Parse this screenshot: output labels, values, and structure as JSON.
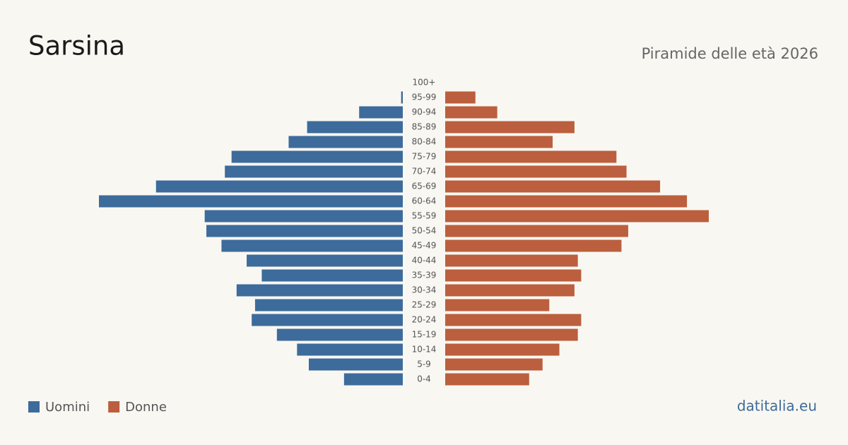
{
  "chart_data": {
    "type": "pyramid",
    "title": "Sarsina",
    "subtitle": "Piramide delle età 2026",
    "source": "datitalia.eu",
    "categories": [
      "0-4",
      "5-9",
      "10-14",
      "15-19",
      "20-24",
      "25-29",
      "30-34",
      "35-39",
      "40-44",
      "45-49",
      "50-54",
      "55-59",
      "60-64",
      "65-69",
      "70-74",
      "75-79",
      "80-84",
      "85-89",
      "90-94",
      "95-99",
      "100+"
    ],
    "series": [
      {
        "name": "Uomini",
        "color": "#3d6b9b",
        "values": [
          35,
          56,
          63,
          75,
          90,
          88,
          99,
          84,
          93,
          108,
          117,
          118,
          181,
          147,
          106,
          102,
          68,
          57,
          26,
          1,
          0
        ]
      },
      {
        "name": "Donne",
        "color": "#bb5f3e",
        "values": [
          50,
          58,
          68,
          79,
          81,
          62,
          77,
          81,
          79,
          105,
          109,
          157,
          144,
          128,
          108,
          102,
          64,
          77,
          31,
          18,
          0
        ]
      }
    ]
  }
}
